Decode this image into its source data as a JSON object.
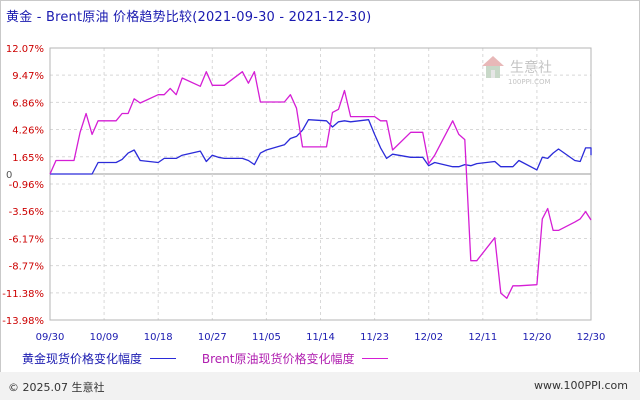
{
  "title": "黄金 - Brent原油 价格趋势比较(2021-09-30 - 2021-12-30)",
  "watermark": {
    "name": "生意社",
    "url": "100PPI.COM"
  },
  "legend": [
    {
      "label": "黄金现货价格变化幅度",
      "color": "#2b2bd9"
    },
    {
      "label": "Brent原油现货价格变化幅度",
      "color": "#d51ed5"
    }
  ],
  "footer": {
    "copyright": "© 2025.07 生意社",
    "url": "www.100PPI.com"
  },
  "colors": {
    "axis_tick_label": "#cc0000",
    "grid": "#d8d8d8",
    "zero_line": "#999999"
  },
  "chart_data": {
    "type": "line",
    "title": "黄金 - Brent原油 价格趋势比较(2021-09-30 - 2021-12-30)",
    "xlabel": "",
    "ylabel": "",
    "x_range": [
      "2021-09-30",
      "2021-12-30"
    ],
    "x_ticks": [
      "09/30",
      "10/09",
      "10/18",
      "10/27",
      "11/05",
      "11/14",
      "11/23",
      "12/02",
      "12/11",
      "12/20",
      "12/30"
    ],
    "y_ticks": [
      "12.07%",
      "9.47%",
      "6.86%",
      "4.26%",
      "1.65%",
      "-0.96%",
      "-3.56%",
      "-6.17%",
      "-8.77%",
      "-11.38%",
      "-13.98%"
    ],
    "ylim": [
      -13.98,
      12.07
    ],
    "grid": true,
    "series": [
      {
        "name": "黄金现货价格变化幅度",
        "color": "#2b2bd9",
        "points": [
          [
            "09/30",
            0
          ],
          [
            "10/01",
            0
          ],
          [
            "10/04",
            0
          ],
          [
            "10/05",
            0
          ],
          [
            "10/06",
            0
          ],
          [
            "10/07",
            0
          ],
          [
            "10/08",
            1.1
          ],
          [
            "10/11",
            1.1
          ],
          [
            "10/12",
            1.4
          ],
          [
            "10/13",
            2.0
          ],
          [
            "10/14",
            2.3
          ],
          [
            "10/15",
            1.3
          ],
          [
            "10/18",
            1.1
          ],
          [
            "10/19",
            1.5
          ],
          [
            "10/20",
            1.5
          ],
          [
            "10/21",
            1.5
          ],
          [
            "10/22",
            1.8
          ],
          [
            "10/25",
            2.2
          ],
          [
            "10/26",
            1.2
          ],
          [
            "10/27",
            1.8
          ],
          [
            "10/28",
            1.6
          ],
          [
            "10/29",
            1.5
          ],
          [
            "11/01",
            1.5
          ],
          [
            "11/02",
            1.3
          ],
          [
            "11/03",
            0.9
          ],
          [
            "11/04",
            2.0
          ],
          [
            "11/05",
            2.3
          ],
          [
            "11/08",
            2.8
          ],
          [
            "11/09",
            3.4
          ],
          [
            "11/10",
            3.6
          ],
          [
            "11/11",
            4.2
          ],
          [
            "11/12",
            5.2
          ],
          [
            "11/15",
            5.1
          ],
          [
            "11/16",
            4.5
          ],
          [
            "11/17",
            5.0
          ],
          [
            "11/18",
            5.1
          ],
          [
            "11/19",
            5.0
          ],
          [
            "11/22",
            5.2
          ],
          [
            "11/23",
            3.8
          ],
          [
            "11/24",
            2.5
          ],
          [
            "11/25",
            1.5
          ],
          [
            "11/26",
            1.9
          ],
          [
            "11/29",
            1.6
          ],
          [
            "11/30",
            1.6
          ],
          [
            "12/01",
            1.6
          ],
          [
            "12/02",
            0.8
          ],
          [
            "12/03",
            1.1
          ],
          [
            "12/06",
            0.7
          ],
          [
            "12/07",
            0.7
          ],
          [
            "12/08",
            0.9
          ],
          [
            "12/09",
            0.8
          ],
          [
            "12/10",
            1.0
          ],
          [
            "12/13",
            1.2
          ],
          [
            "12/14",
            0.7
          ],
          [
            "12/15",
            0.7
          ],
          [
            "12/16",
            0.7
          ],
          [
            "12/17",
            1.3
          ],
          [
            "12/20",
            0.4
          ],
          [
            "12/21",
            1.6
          ],
          [
            "12/22",
            1.5
          ],
          [
            "12/23",
            2.0
          ],
          [
            "12/24",
            2.4
          ],
          [
            "12/27",
            1.3
          ],
          [
            "12/28",
            1.2
          ],
          [
            "12/29",
            2.5
          ],
          [
            "12/30",
            2.5
          ],
          [
            "12/30",
            1.8
          ]
        ]
      },
      {
        "name": "Brent原油现货价格变化幅度",
        "color": "#d51ed5",
        "points": [
          [
            "09/30",
            0
          ],
          [
            "10/01",
            1.3
          ],
          [
            "10/04",
            1.3
          ],
          [
            "10/05",
            4.0
          ],
          [
            "10/06",
            5.8
          ],
          [
            "10/07",
            3.8
          ],
          [
            "10/08",
            5.1
          ],
          [
            "10/11",
            5.1
          ],
          [
            "10/12",
            5.8
          ],
          [
            "10/13",
            5.8
          ],
          [
            "10/14",
            7.2
          ],
          [
            "10/15",
            6.8
          ],
          [
            "10/18",
            7.6
          ],
          [
            "10/19",
            7.6
          ],
          [
            "10/20",
            8.2
          ],
          [
            "10/21",
            7.6
          ],
          [
            "10/22",
            9.2
          ],
          [
            "10/25",
            8.4
          ],
          [
            "10/26",
            9.8
          ],
          [
            "10/27",
            8.5
          ],
          [
            "10/28",
            8.5
          ],
          [
            "10/29",
            8.5
          ],
          [
            "11/01",
            9.8
          ],
          [
            "11/02",
            8.7
          ],
          [
            "11/03",
            9.8
          ],
          [
            "11/04",
            6.9
          ],
          [
            "11/05",
            6.9
          ],
          [
            "11/08",
            6.9
          ],
          [
            "11/09",
            7.6
          ],
          [
            "11/10",
            6.3
          ],
          [
            "11/11",
            2.6
          ],
          [
            "11/12",
            2.6
          ],
          [
            "11/15",
            2.6
          ],
          [
            "11/16",
            5.9
          ],
          [
            "11/17",
            6.2
          ],
          [
            "11/18",
            8.0
          ],
          [
            "11/19",
            5.5
          ],
          [
            "11/22",
            5.5
          ],
          [
            "11/23",
            5.5
          ],
          [
            "11/24",
            5.1
          ],
          [
            "11/25",
            5.1
          ],
          [
            "11/26",
            2.3
          ],
          [
            "11/29",
            4.0
          ],
          [
            "11/30",
            4.0
          ],
          [
            "12/01",
            4.0
          ],
          [
            "12/02",
            1.0
          ],
          [
            "12/03",
            1.8
          ],
          [
            "12/06",
            5.1
          ],
          [
            "12/07",
            3.8
          ],
          [
            "12/08",
            3.3
          ],
          [
            "12/09",
            -8.3
          ],
          [
            "12/10",
            -8.3
          ],
          [
            "12/13",
            -6.1
          ],
          [
            "12/14",
            -11.4
          ],
          [
            "12/15",
            -11.9
          ],
          [
            "12/16",
            -10.7
          ],
          [
            "12/17",
            -10.7
          ],
          [
            "12/20",
            -10.6
          ],
          [
            "12/21",
            -4.3
          ],
          [
            "12/22",
            -3.3
          ],
          [
            "12/23",
            -5.4
          ],
          [
            "12/24",
            -5.4
          ],
          [
            "12/27",
            -4.6
          ],
          [
            "12/28",
            -4.3
          ],
          [
            "12/29",
            -3.6
          ],
          [
            "12/30",
            -4.4
          ]
        ]
      }
    ]
  }
}
